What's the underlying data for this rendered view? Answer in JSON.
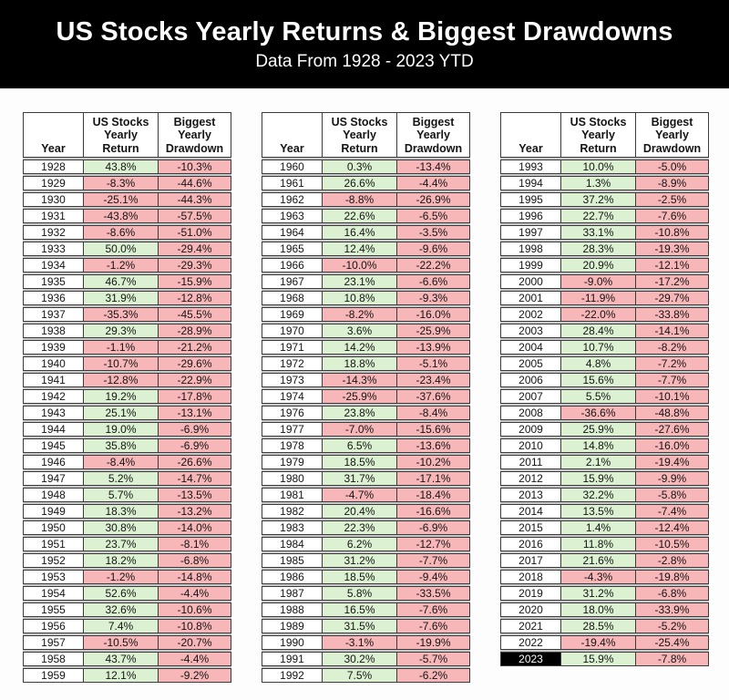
{
  "header": {
    "title": "US Stocks Yearly Returns & Biggest Drawdowns",
    "subtitle": "Data From 1928 - 2023 YTD"
  },
  "table_columns": [
    "Year",
    "US Stocks\nYearly\nReturn",
    "Biggest\nYearly\nDrawdown"
  ],
  "highlight_year": "2023",
  "colors": {
    "positive_bg": "#dcf1d2",
    "negative_bg": "#f7b6b8",
    "row_bg": "#ffffff",
    "border": "#3b3b3b",
    "gap_gray": "#c8c8c8",
    "banner_bg": "#000000",
    "banner_text": "#ffffff",
    "highlight_year_bg": "#000000",
    "highlight_year_text": "#ffffff"
  },
  "chart_data": {
    "type": "table",
    "title": "US Stocks Yearly Returns & Biggest Drawdowns",
    "subtitle": "Data From 1928 - 2023 YTD",
    "columns": [
      "Year",
      "US Stocks Yearly Return",
      "Biggest Yearly Drawdown"
    ],
    "tables": [
      {
        "rows": [
          [
            "1928",
            "43.8%",
            "-10.3%"
          ],
          [
            "1929",
            "-8.3%",
            "-44.6%"
          ],
          [
            "1930",
            "-25.1%",
            "-44.3%"
          ],
          [
            "1931",
            "-43.8%",
            "-57.5%"
          ],
          [
            "1932",
            "-8.6%",
            "-51.0%"
          ],
          [
            "1933",
            "50.0%",
            "-29.4%"
          ],
          [
            "1934",
            "-1.2%",
            "-29.3%"
          ],
          [
            "1935",
            "46.7%",
            "-15.9%"
          ],
          [
            "1936",
            "31.9%",
            "-12.8%"
          ],
          [
            "1937",
            "-35.3%",
            "-45.5%"
          ],
          [
            "1938",
            "29.3%",
            "-28.9%"
          ],
          [
            "1939",
            "-1.1%",
            "-21.2%"
          ],
          [
            "1940",
            "-10.7%",
            "-29.6%"
          ],
          [
            "1941",
            "-12.8%",
            "-22.9%"
          ],
          [
            "1942",
            "19.2%",
            "-17.8%"
          ],
          [
            "1943",
            "25.1%",
            "-13.1%"
          ],
          [
            "1944",
            "19.0%",
            "-6.9%"
          ],
          [
            "1945",
            "35.8%",
            "-6.9%"
          ],
          [
            "1946",
            "-8.4%",
            "-26.6%"
          ],
          [
            "1947",
            "5.2%",
            "-14.7%"
          ],
          [
            "1948",
            "5.7%",
            "-13.5%"
          ],
          [
            "1949",
            "18.3%",
            "-13.2%"
          ],
          [
            "1950",
            "30.8%",
            "-14.0%"
          ],
          [
            "1951",
            "23.7%",
            "-8.1%"
          ],
          [
            "1952",
            "18.2%",
            "-6.8%"
          ],
          [
            "1953",
            "-1.2%",
            "-14.8%"
          ],
          [
            "1954",
            "52.6%",
            "-4.4%"
          ],
          [
            "1955",
            "32.6%",
            "-10.6%"
          ],
          [
            "1956",
            "7.4%",
            "-10.8%"
          ],
          [
            "1957",
            "-10.5%",
            "-20.7%"
          ],
          [
            "1958",
            "43.7%",
            "-4.4%"
          ],
          [
            "1959",
            "12.1%",
            "-9.2%"
          ]
        ]
      },
      {
        "rows": [
          [
            "1960",
            "0.3%",
            "-13.4%"
          ],
          [
            "1961",
            "26.6%",
            "-4.4%"
          ],
          [
            "1962",
            "-8.8%",
            "-26.9%"
          ],
          [
            "1963",
            "22.6%",
            "-6.5%"
          ],
          [
            "1964",
            "16.4%",
            "-3.5%"
          ],
          [
            "1965",
            "12.4%",
            "-9.6%"
          ],
          [
            "1966",
            "-10.0%",
            "-22.2%"
          ],
          [
            "1967",
            "23.1%",
            "-6.6%"
          ],
          [
            "1968",
            "10.8%",
            "-9.3%"
          ],
          [
            "1969",
            "-8.2%",
            "-16.0%"
          ],
          [
            "1970",
            "3.6%",
            "-25.9%"
          ],
          [
            "1971",
            "14.2%",
            "-13.9%"
          ],
          [
            "1972",
            "18.8%",
            "-5.1%"
          ],
          [
            "1973",
            "-14.3%",
            "-23.4%"
          ],
          [
            "1974",
            "-25.9%",
            "-37.6%"
          ],
          [
            "1976",
            "23.8%",
            "-8.4%"
          ],
          [
            "1977",
            "-7.0%",
            "-15.6%"
          ],
          [
            "1978",
            "6.5%",
            "-13.6%"
          ],
          [
            "1979",
            "18.5%",
            "-10.2%"
          ],
          [
            "1980",
            "31.7%",
            "-17.1%"
          ],
          [
            "1981",
            "-4.7%",
            "-18.4%"
          ],
          [
            "1982",
            "20.4%",
            "-16.6%"
          ],
          [
            "1983",
            "22.3%",
            "-6.9%"
          ],
          [
            "1984",
            "6.2%",
            "-12.7%"
          ],
          [
            "1985",
            "31.2%",
            "-7.7%"
          ],
          [
            "1986",
            "18.5%",
            "-9.4%"
          ],
          [
            "1987",
            "5.8%",
            "-33.5%"
          ],
          [
            "1988",
            "16.5%",
            "-7.6%"
          ],
          [
            "1989",
            "31.5%",
            "-7.6%"
          ],
          [
            "1990",
            "-3.1%",
            "-19.9%"
          ],
          [
            "1991",
            "30.2%",
            "-5.7%"
          ],
          [
            "1992",
            "7.5%",
            "-6.2%"
          ]
        ]
      },
      {
        "rows": [
          [
            "1993",
            "10.0%",
            "-5.0%"
          ],
          [
            "1994",
            "1.3%",
            "-8.9%"
          ],
          [
            "1995",
            "37.2%",
            "-2.5%"
          ],
          [
            "1996",
            "22.7%",
            "-7.6%"
          ],
          [
            "1997",
            "33.1%",
            "-10.8%"
          ],
          [
            "1998",
            "28.3%",
            "-19.3%"
          ],
          [
            "1999",
            "20.9%",
            "-12.1%"
          ],
          [
            "2000",
            "-9.0%",
            "-17.2%"
          ],
          [
            "2001",
            "-11.9%",
            "-29.7%"
          ],
          [
            "2002",
            "-22.0%",
            "-33.8%"
          ],
          [
            "2003",
            "28.4%",
            "-14.1%"
          ],
          [
            "2004",
            "10.7%",
            "-8.2%"
          ],
          [
            "2005",
            "4.8%",
            "-7.2%"
          ],
          [
            "2006",
            "15.6%",
            "-7.7%"
          ],
          [
            "2007",
            "5.5%",
            "-10.1%"
          ],
          [
            "2008",
            "-36.6%",
            "-48.8%"
          ],
          [
            "2009",
            "25.9%",
            "-27.6%"
          ],
          [
            "2010",
            "14.8%",
            "-16.0%"
          ],
          [
            "2011",
            "2.1%",
            "-19.4%"
          ],
          [
            "2012",
            "15.9%",
            "-9.9%"
          ],
          [
            "2013",
            "32.2%",
            "-5.8%"
          ],
          [
            "2014",
            "13.5%",
            "-7.4%"
          ],
          [
            "2015",
            "1.4%",
            "-12.4%"
          ],
          [
            "2016",
            "11.8%",
            "-10.5%"
          ],
          [
            "2017",
            "21.6%",
            "-2.8%"
          ],
          [
            "2018",
            "-4.3%",
            "-19.8%"
          ],
          [
            "2019",
            "31.2%",
            "-6.8%"
          ],
          [
            "2020",
            "18.0%",
            "-33.9%"
          ],
          [
            "2021",
            "28.5%",
            "-5.2%"
          ],
          [
            "2022",
            "-19.4%",
            "-25.4%"
          ],
          [
            "2023",
            "15.9%",
            "-7.8%"
          ]
        ]
      }
    ]
  }
}
